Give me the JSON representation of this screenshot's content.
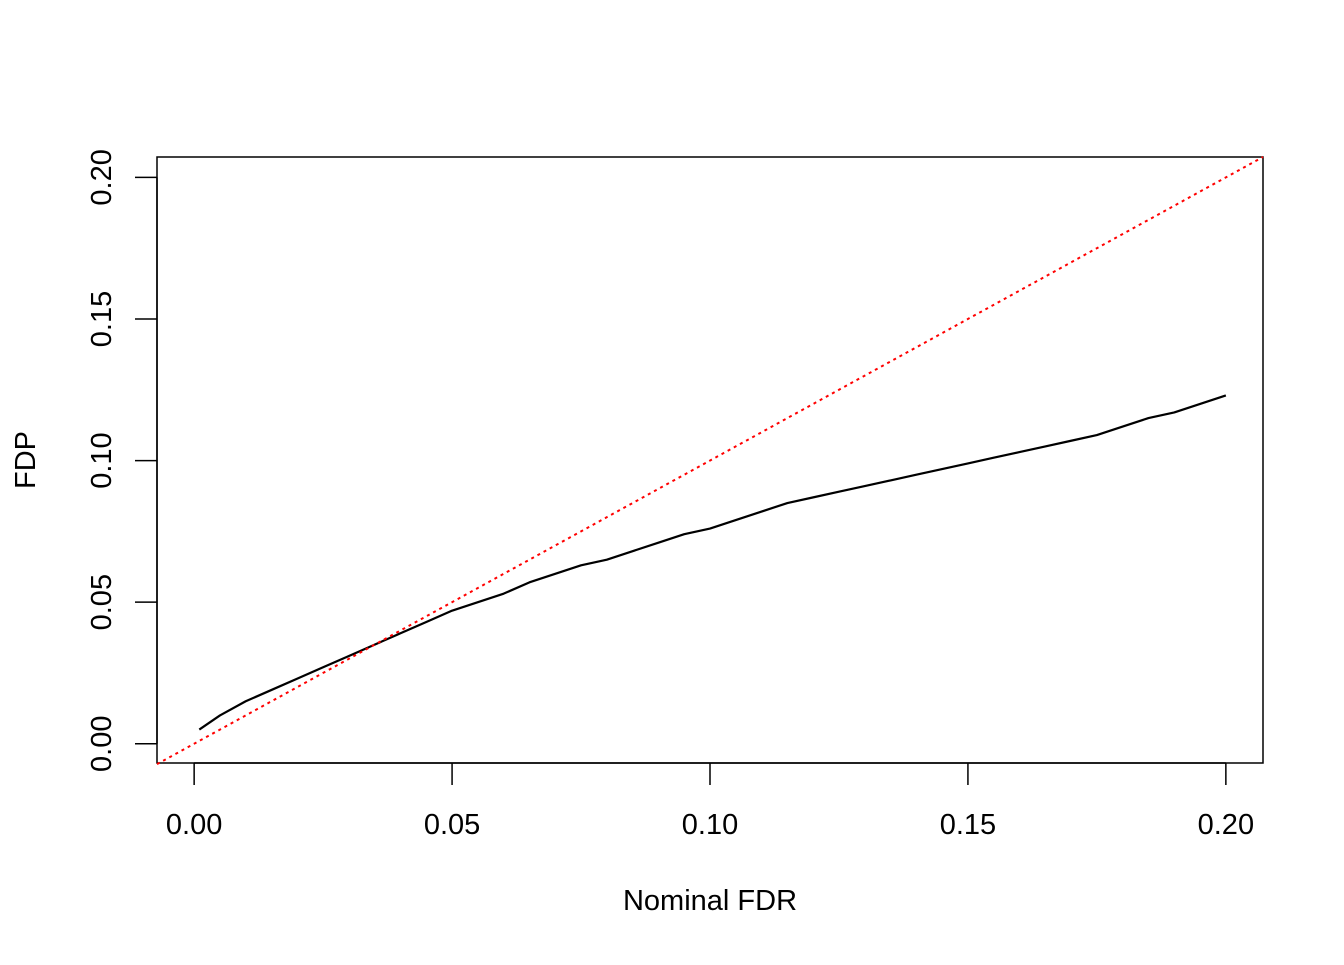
{
  "chart_data": {
    "type": "line",
    "title": "",
    "xlabel": "Nominal FDR",
    "ylabel": "FDP",
    "xlim": [
      -0.0072,
      0.2072
    ],
    "ylim": [
      -0.0068,
      0.2072
    ],
    "grid": false,
    "legend": "none",
    "x_ticks": [
      0.0,
      0.05,
      0.1,
      0.15,
      0.2
    ],
    "x_tick_labels": [
      "0.00",
      "0.05",
      "0.10",
      "0.15",
      "0.20"
    ],
    "y_ticks": [
      0.0,
      0.05,
      0.1,
      0.15,
      0.2
    ],
    "y_tick_labels": [
      "0.00",
      "0.05",
      "0.10",
      "0.15",
      "0.20"
    ],
    "series": [
      {
        "color": "#000000",
        "style": "solid",
        "x": [
          0.001,
          0.005,
          0.01,
          0.015,
          0.02,
          0.025,
          0.03,
          0.035,
          0.04,
          0.045,
          0.05,
          0.055,
          0.06,
          0.065,
          0.07,
          0.075,
          0.08,
          0.085,
          0.09,
          0.095,
          0.1,
          0.105,
          0.11,
          0.115,
          0.12,
          0.125,
          0.13,
          0.135,
          0.14,
          0.145,
          0.15,
          0.155,
          0.16,
          0.165,
          0.17,
          0.175,
          0.18,
          0.185,
          0.19,
          0.195,
          0.2
        ],
        "y": [
          0.005,
          0.01,
          0.015,
          0.019,
          0.023,
          0.027,
          0.031,
          0.035,
          0.039,
          0.043,
          0.047,
          0.05,
          0.053,
          0.057,
          0.06,
          0.063,
          0.065,
          0.068,
          0.071,
          0.074,
          0.076,
          0.079,
          0.082,
          0.085,
          0.087,
          0.089,
          0.091,
          0.093,
          0.095,
          0.097,
          0.099,
          0.101,
          0.103,
          0.105,
          0.107,
          0.109,
          0.112,
          0.115,
          0.117,
          0.12,
          0.123
        ]
      },
      {
        "color": "#ff0000",
        "style": "dotted",
        "x": [
          -0.0072,
          0.2072
        ],
        "y": [
          -0.0072,
          0.2072
        ]
      }
    ]
  }
}
